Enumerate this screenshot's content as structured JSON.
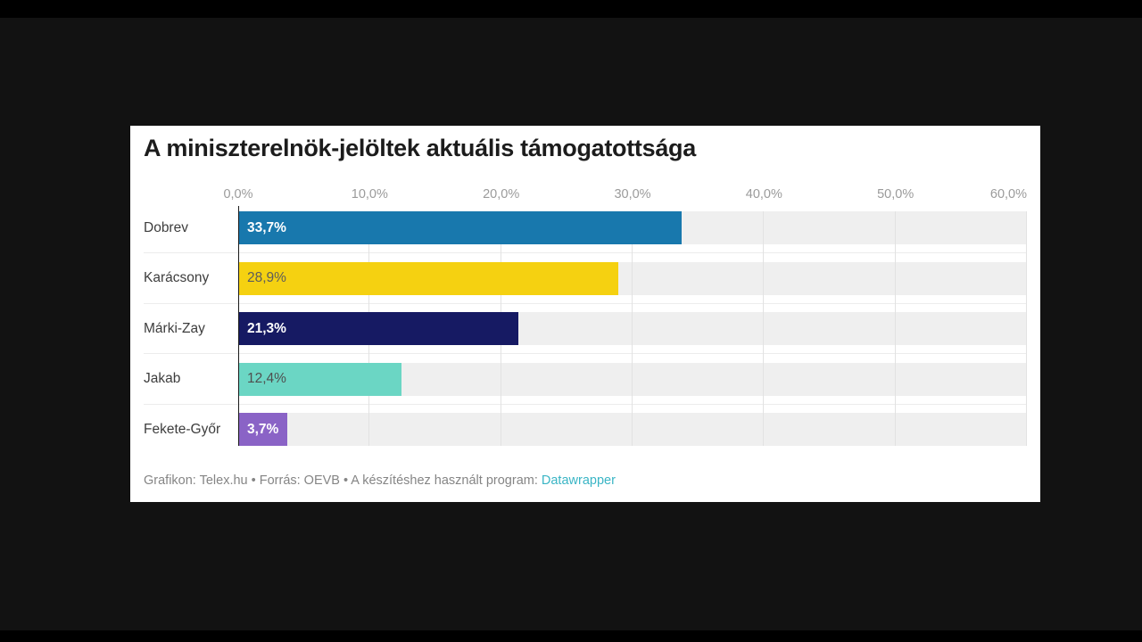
{
  "frame": {
    "outer_background": "#000000",
    "inner_background": "#121212",
    "card_background": "#ffffff"
  },
  "chart_data": {
    "type": "bar",
    "orientation": "horizontal",
    "title": "A miniszterelnök-jelöltek aktuális támogatottsága",
    "categories": [
      "Dobrev",
      "Karácsony",
      "Márki-Zay",
      "Jakab",
      "Fekete-Győr"
    ],
    "values": [
      33.7,
      28.9,
      21.3,
      12.4,
      3.7
    ],
    "value_labels": [
      "33,7%",
      "28,9%",
      "21,3%",
      "12,4%",
      "3,7%"
    ],
    "bar_colors": [
      "#1878ad",
      "#f5d111",
      "#161a63",
      "#6bd6c4",
      "#8a63c6"
    ],
    "value_label_colors": [
      "#ffffff",
      "#5c5c5c",
      "#ffffff",
      "#4f4f4f",
      "#ffffff"
    ],
    "x_ticks": [
      "0,0%",
      "10,0%",
      "20,0%",
      "30,0%",
      "40,0%",
      "50,0%",
      "60,0%"
    ],
    "xlabel": "",
    "ylabel": "",
    "xlim": [
      0,
      60
    ],
    "grid": "vertical",
    "grid_color": "#e2e2e2",
    "row_track_color": "#efefef",
    "axis_line_color": "#1a1a1a",
    "tick_label_color": "#9b9b9b",
    "category_label_color": "#3d3d3d",
    "legend": "none"
  },
  "footer": {
    "text": "Grafikon: Telex.hu • Forrás: OEVB • A készítéshez használt program: ",
    "link": "Datawrapper",
    "link_color": "#3ab5c5",
    "text_color": "#858585"
  }
}
